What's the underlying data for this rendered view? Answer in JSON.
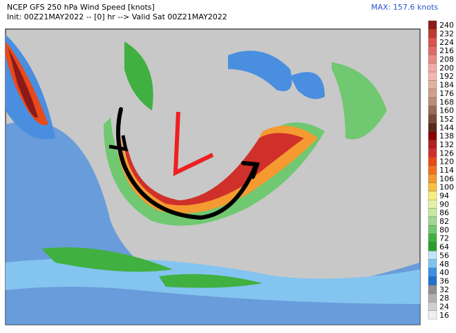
{
  "header": {
    "title": "NCEP GFS 250 hPa Wind Speed [knots]",
    "subtitle": "Init: 00Z21MAY2022 -- [0] hr --> Valid Sat 00Z21MAY2022",
    "max": "MAX: 157.6 knots"
  },
  "colorbar": {
    "levels": [
      {
        "label": "240",
        "color": "#8b1a1a"
      },
      {
        "label": "232",
        "color": "#c0392b"
      },
      {
        "label": "224",
        "color": "#d9534f"
      },
      {
        "label": "216",
        "color": "#e06a66"
      },
      {
        "label": "208",
        "color": "#ea8a84"
      },
      {
        "label": "200",
        "color": "#f2aaa4"
      },
      {
        "label": "192",
        "color": "#f1b8ae"
      },
      {
        "label": "184",
        "color": "#e6b09e"
      },
      {
        "label": "176",
        "color": "#d49e8c"
      },
      {
        "label": "168",
        "color": "#c08a78"
      },
      {
        "label": "160",
        "color": "#a06a58"
      },
      {
        "label": "152",
        "color": "#7a4a3a"
      },
      {
        "label": "144",
        "color": "#5a2a1a"
      },
      {
        "label": "138",
        "color": "#8b0000"
      },
      {
        "label": "132",
        "color": "#b22222"
      },
      {
        "label": "126",
        "color": "#d0302a"
      },
      {
        "label": "120",
        "color": "#e84a1a"
      },
      {
        "label": "114",
        "color": "#f07020"
      },
      {
        "label": "106",
        "color": "#f59a30"
      },
      {
        "label": "100",
        "color": "#f8c040"
      },
      {
        "label": "94",
        "color": "#f7ec80"
      },
      {
        "label": "90",
        "color": "#e8f0a8"
      },
      {
        "label": "86",
        "color": "#c8e8a0"
      },
      {
        "label": "82",
        "color": "#a0d890"
      },
      {
        "label": "80",
        "color": "#70c870"
      },
      {
        "label": "72",
        "color": "#40b040"
      },
      {
        "label": "64",
        "color": "#28a028"
      },
      {
        "label": "56",
        "color": "#c0e4f8"
      },
      {
        "label": "48",
        "color": "#80c4f0"
      },
      {
        "label": "40",
        "color": "#4090e0"
      },
      {
        "label": "36",
        "color": "#2070d0"
      },
      {
        "label": "32",
        "color": "#909090"
      },
      {
        "label": "28",
        "color": "#b0b0b0"
      },
      {
        "label": "24",
        "color": "#d0d0d0"
      },
      {
        "label": "16",
        "color": "#f0f0f0"
      }
    ]
  }
}
